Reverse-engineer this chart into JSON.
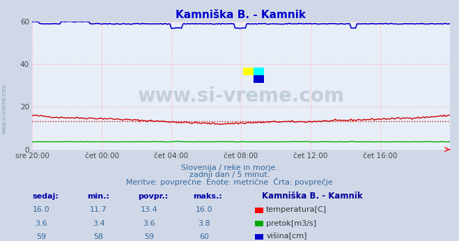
{
  "title": "Kamniška B. - Kamnik",
  "title_color": "#0000cc",
  "bg_color": "#d0d8e8",
  "plot_bg_color": "#e8eef8",
  "grid_color": "#ffaaaa",
  "grid_style": ":",
  "xlabel_color": "#444444",
  "ylabel_color": "#444444",
  "xlim": [
    0,
    288
  ],
  "ylim": [
    0,
    60
  ],
  "yticks": [
    0,
    20,
    40,
    60
  ],
  "xtick_labels": [
    "sre 20:00",
    "čet 00:00",
    "čet 04:00",
    "čet 08:00",
    "čet 12:00",
    "čet 16:00"
  ],
  "xtick_positions": [
    0,
    48,
    96,
    144,
    192,
    240
  ],
  "watermark_text": "www.si-vreme.com",
  "watermark_color": "#aabbcc",
  "watermark_alpha": 0.6,
  "subtitle1": "Slovenija / reke in morje.",
  "subtitle2": "zadnji dan / 5 minut.",
  "subtitle3": "Meritve: povprečne  Enote: metrične  Črta: povprečje",
  "subtitle_color": "#336699",
  "temp_color": "#cc0000",
  "temp_avg_color": "#cc0000",
  "flow_color": "#00aa00",
  "height_color": "#0000cc",
  "legend_title": "Kamniška B. - Kamnik",
  "legend_title_color": "#000099",
  "sedaj_label": "sedaj:",
  "min_label": "min.:",
  "povpr_label": "povpr.:",
  "maks_label": "maks.:",
  "temp_sedaj": 16.0,
  "temp_min": 11.7,
  "temp_povpr": 13.4,
  "temp_maks": 16.0,
  "flow_sedaj": 3.6,
  "flow_min": 3.4,
  "flow_povpr": 3.6,
  "flow_maks": 3.8,
  "height_sedaj": 59,
  "height_min": 58,
  "height_povpr": 59,
  "height_maks": 60
}
